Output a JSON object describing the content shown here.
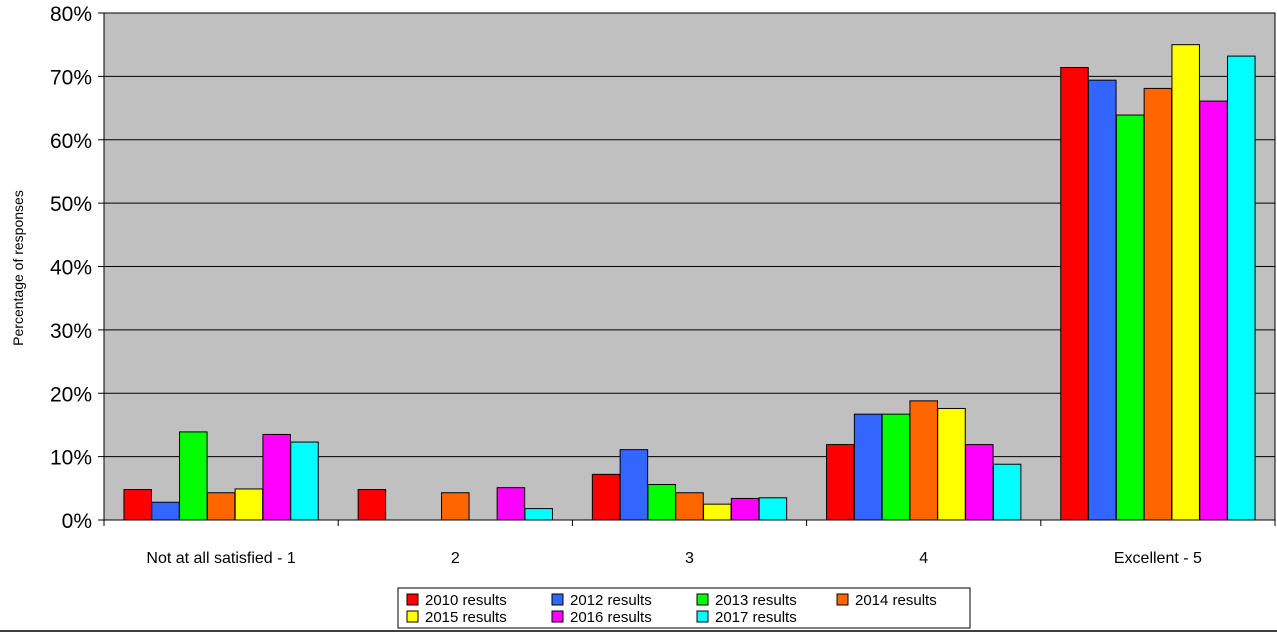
{
  "chart_data": {
    "type": "bar",
    "title": "",
    "xlabel": "",
    "ylabel": "Percentage of responses",
    "ylim": [
      0,
      80
    ],
    "yticks": [
      "0%",
      "10%",
      "20%",
      "30%",
      "40%",
      "50%",
      "60%",
      "70%",
      "80%"
    ],
    "grid": true,
    "legend_position": "bottom",
    "plot_background": "#c0c0c0",
    "categories": [
      "Not at all satisfied - 1",
      "2",
      "3",
      "4",
      "Excellent - 5"
    ],
    "series": [
      {
        "name": "2010 results",
        "color": "#ff0000",
        "values": [
          4.8,
          4.8,
          7.2,
          11.9,
          71.4
        ]
      },
      {
        "name": "2012 results",
        "color": "#3366ff",
        "values": [
          2.8,
          0,
          11.1,
          16.7,
          69.4
        ]
      },
      {
        "name": "2013 results",
        "color": "#00ff00",
        "values": [
          13.9,
          0,
          5.6,
          16.7,
          63.9
        ]
      },
      {
        "name": "2014 results",
        "color": "#ff6600",
        "values": [
          4.3,
          4.3,
          4.3,
          18.8,
          68.1
        ]
      },
      {
        "name": "2015 results",
        "color": "#ffff00",
        "values": [
          4.9,
          0,
          2.5,
          17.6,
          75.0
        ]
      },
      {
        "name": "2016 results",
        "color": "#ff00ff",
        "values": [
          13.5,
          5.1,
          3.4,
          11.9,
          66.1
        ]
      },
      {
        "name": "2017 results",
        "color": "#00ffff",
        "values": [
          12.3,
          1.8,
          3.5,
          8.8,
          73.2
        ]
      }
    ]
  }
}
